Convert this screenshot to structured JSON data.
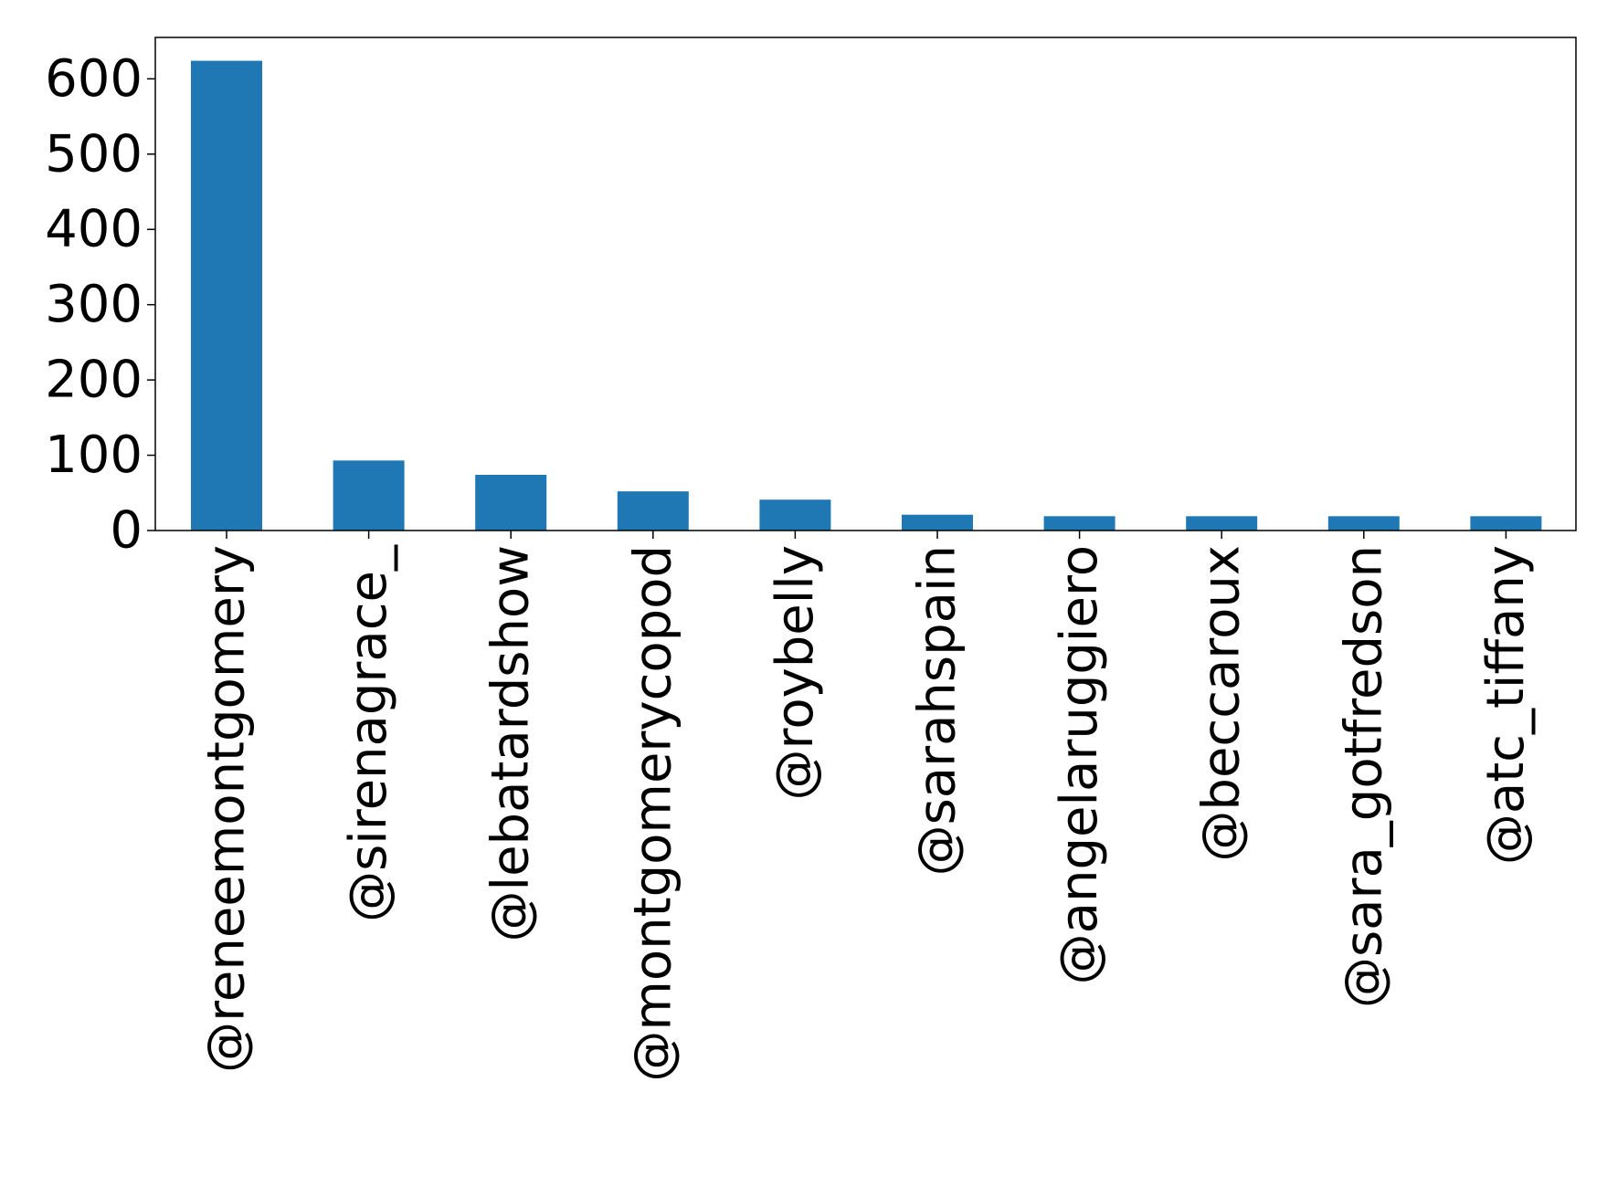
{
  "chart_data": {
    "type": "bar",
    "title": "",
    "xlabel": "",
    "ylabel": "",
    "categories": [
      "@reneemontgomery",
      "@sirenagrace_",
      "@lebatardshow",
      "@montgomerycopod",
      "@roybelly",
      "@sarahspain",
      "@angelaruggiero",
      "@beccaroux",
      "@sara_gotfredson",
      "@atc_tiffany"
    ],
    "values": [
      624,
      93,
      74,
      52,
      41,
      21,
      19,
      19,
      19,
      19
    ],
    "ylim": [
      0,
      655
    ],
    "yticks": [
      0,
      100,
      200,
      300,
      400,
      500,
      600
    ],
    "ytick_labels": [
      "0",
      "100",
      "200",
      "300",
      "400",
      "500",
      "600"
    ],
    "grid": false,
    "legend": "none",
    "bar_color": "#1f77b4"
  }
}
